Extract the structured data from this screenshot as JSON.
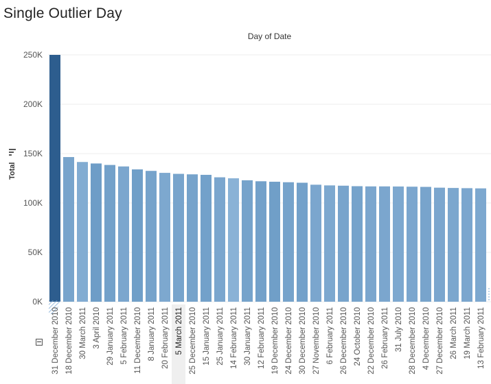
{
  "page": {
    "title": "Single Outlier Day"
  },
  "colors": {
    "bar_dark": "#2d5d8e",
    "bar_mid": "#5c8fbd",
    "bar_light": "#8fb6d9",
    "gridline": "#ececec",
    "axis_text": "#555555"
  },
  "icons": {
    "sort": "sort-descending-icon",
    "collapse": "collapse-minus-icon"
  },
  "chart_data": {
    "type": "bar",
    "title": "",
    "column_header": "Day of Date",
    "ylabel": "Total",
    "xlabel": "",
    "ylim": [
      0,
      250000
    ],
    "yticks": [
      0,
      50000,
      100000,
      150000,
      200000,
      250000
    ],
    "ytick_labels": [
      "0K",
      "50K",
      "100K",
      "150K",
      "200K",
      "250K"
    ],
    "grid": true,
    "highlighted_category": "5 March 2011",
    "categories": [
      "31 December 2010",
      "18 December 2010",
      "30 March 2011",
      "3 April 2010",
      "29 January 2011",
      "5 February 2011",
      "11 December 2010",
      "8 January 2011",
      "20 February 2011",
      "5 March 2011",
      "25 December 2010",
      "15 January 2011",
      "25 January 2011",
      "14 February 2011",
      "30 January 2011",
      "12 February 2011",
      "19 December 2010",
      "24 December 2010",
      "30 December 2010",
      "27 November 2010",
      "6 February 2011",
      "26 December 2010",
      "24 October 2010",
      "22 December 2010",
      "26 February 2011",
      "31 July 2010",
      "28 December 2010",
      "4 December 2010",
      "27 December 2010",
      "26 March 2011",
      "19 March 2011",
      "13 February 2011"
    ],
    "values": [
      250000,
      146500,
      141500,
      140000,
      138500,
      137000,
      134000,
      132500,
      130500,
      129500,
      129000,
      128500,
      126000,
      125000,
      123000,
      122000,
      121500,
      121000,
      120500,
      118500,
      117800,
      117500,
      117000,
      116800,
      116800,
      116700,
      116500,
      116300,
      115500,
      115200,
      115000,
      114800
    ]
  }
}
